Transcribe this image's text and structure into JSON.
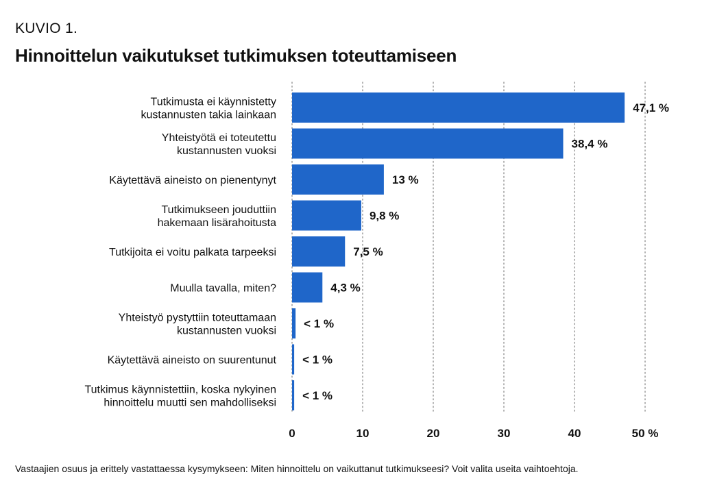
{
  "header": {
    "kicker": "KUVIO 1.",
    "title": "Hinnoittelun vaikutukset tutkimuksen toteuttamiseen"
  },
  "footnote": "Vastaajien osuus ja erittely vastattaessa kysymykseen: Miten hinnoittelu on vaikuttanut tutkimukseesi? Voit valita useita vaihtoehtoja.",
  "chart_data": {
    "type": "bar",
    "orientation": "horizontal",
    "bar_color": "#1f66c9",
    "categories": [
      [
        "Tutkimusta ei käynnistetty",
        "kustannusten takia lainkaan"
      ],
      [
        "Yhteistyötä ei toteutettu",
        "kustannusten vuoksi"
      ],
      [
        "Käytettävä aineisto on pienentynyt"
      ],
      [
        "Tutkimukseen jouduttiin",
        "hakemaan lisärahoitusta"
      ],
      [
        "Tutkijoita ei voitu palkata tarpeeksi"
      ],
      [
        "Muulla tavalla, miten?"
      ],
      [
        "Yhteistyö pystyttiin toteuttamaan",
        "kustannusten vuoksi"
      ],
      [
        "Käytettävä aineisto on suurentunut"
      ],
      [
        "Tutkimus käynnistettiin, koska nykyinen",
        "hinnoittelu muutti sen mahdolliseksi"
      ]
    ],
    "values": [
      47.1,
      38.4,
      13,
      9.8,
      7.5,
      4.3,
      0.5,
      0.3,
      0.3
    ],
    "value_labels": [
      "47,1 %",
      "38,4 %",
      "13 %",
      "9,8 %",
      "7,5 %",
      "4,3 %",
      "< 1 %",
      "< 1 %",
      "< 1 %"
    ],
    "xlim": [
      0,
      50
    ],
    "xticks": [
      0,
      10,
      20,
      30,
      40,
      50
    ],
    "xtick_labels": [
      "0",
      "10",
      "20",
      "30",
      "40",
      "50 %"
    ],
    "grid": "vertical-dotted"
  }
}
